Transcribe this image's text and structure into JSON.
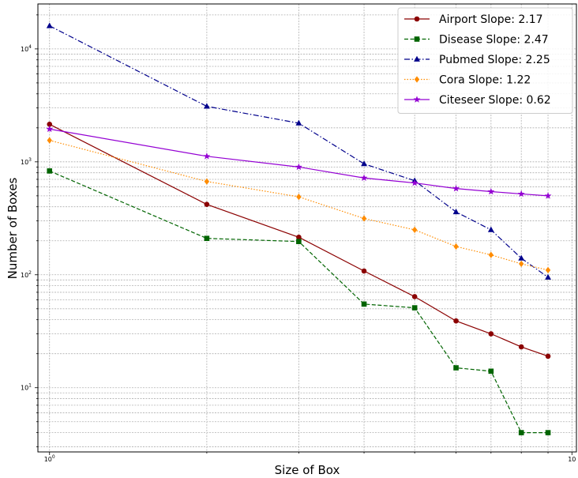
{
  "chart_data": {
    "type": "line",
    "xlabel": "Size of Box",
    "ylabel": "Number of Boxes",
    "xscale": "log",
    "yscale": "log",
    "xlim": [
      0.95,
      10.2
    ],
    "ylim": [
      2.7,
      25000
    ],
    "x_ticks": [
      {
        "value": 1,
        "label": "10",
        "exp": "0"
      },
      {
        "value": 10,
        "label": "10",
        "exp": ""
      }
    ],
    "y_ticks": [
      {
        "value": 10,
        "label": "10",
        "exp": "1"
      },
      {
        "value": 100,
        "label": "10",
        "exp": "2"
      },
      {
        "value": 1000,
        "label": "10",
        "exp": "3"
      },
      {
        "value": 10000,
        "label": "10",
        "exp": "4"
      }
    ],
    "grid": true,
    "legend_position": "top-right",
    "x": [
      1,
      2,
      3,
      4,
      5,
      6,
      7,
      8,
      9
    ],
    "series": [
      {
        "name": "Airport Slope: 2.17",
        "color": "#8b0000",
        "dash": "solid",
        "marker": "circle",
        "values": [
          2150,
          420,
          215,
          108,
          64,
          39,
          30,
          23,
          19
        ]
      },
      {
        "name": "Disease Slope: 2.47",
        "color": "#006400",
        "dash": "dashed",
        "marker": "square",
        "values": [
          830,
          210,
          197,
          55,
          51,
          15,
          14,
          4,
          4
        ]
      },
      {
        "name": "Pubmed Slope: 2.25",
        "color": "#00008b",
        "dash": "dashdot",
        "marker": "triangle",
        "values": [
          16000,
          3100,
          2200,
          960,
          680,
          360,
          250,
          140,
          95
        ]
      },
      {
        "name": "Cora Slope: 1.22",
        "color": "#ff8c00",
        "dash": "dotted",
        "marker": "diamond",
        "values": [
          1550,
          670,
          490,
          315,
          250,
          178,
          150,
          125,
          110
        ]
      },
      {
        "name": "Citeseer Slope: 0.62",
        "color": "#9400d3",
        "dash": "solid",
        "marker": "star",
        "values": [
          1950,
          1120,
          900,
          720,
          650,
          580,
          545,
          520,
          500
        ]
      }
    ]
  }
}
